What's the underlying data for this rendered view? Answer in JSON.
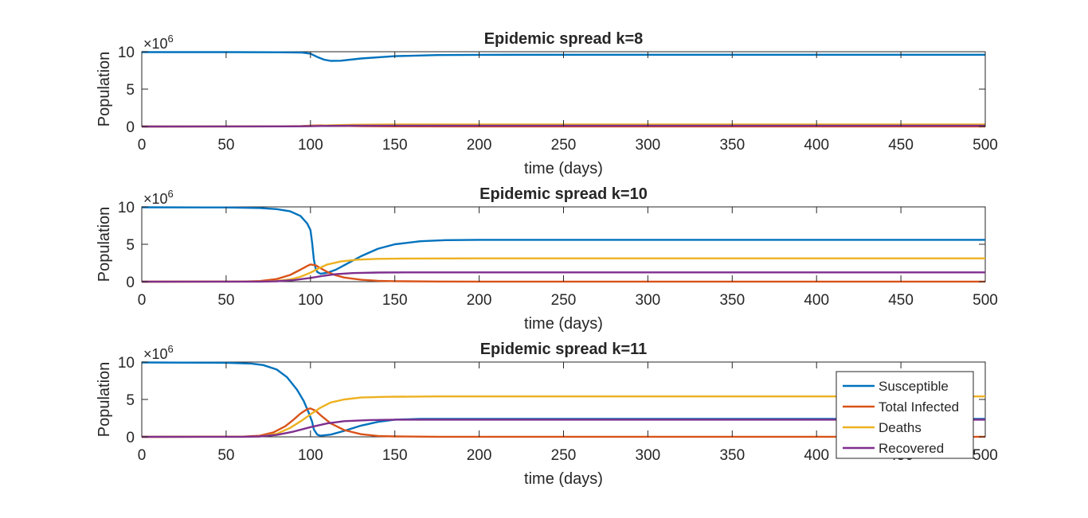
{
  "chart_data": [
    {
      "type": "line",
      "title": "Epidemic spread k=8",
      "xlabel": "time (days)",
      "ylabel": "Population",
      "exponent_label": "×10",
      "exponent_power": "6",
      "xlim": [
        0,
        500
      ],
      "ylim": [
        0,
        10
      ],
      "xticks": [
        "0",
        "50",
        "100",
        "150",
        "200",
        "250",
        "300",
        "350",
        "400",
        "450",
        "500"
      ],
      "yticks": [
        "0",
        "5",
        "10"
      ],
      "legend": null,
      "series": [
        {
          "name": "Susceptible",
          "color": "#0072BD",
          "points": [
            [
              0,
              9.95
            ],
            [
              50,
              9.95
            ],
            [
              80,
              9.93
            ],
            [
              95,
              9.88
            ],
            [
              100,
              9.75
            ],
            [
              104,
              9.3
            ],
            [
              108,
              8.95
            ],
            [
              112,
              8.78
            ],
            [
              118,
              8.8
            ],
            [
              130,
              9.1
            ],
            [
              150,
              9.4
            ],
            [
              175,
              9.55
            ],
            [
              200,
              9.58
            ],
            [
              300,
              9.6
            ],
            [
              500,
              9.6
            ]
          ]
        },
        {
          "name": "Total Infected",
          "color": "#D95319",
          "points": [
            [
              0,
              0
            ],
            [
              80,
              0.02
            ],
            [
              95,
              0.06
            ],
            [
              100,
              0.12
            ],
            [
              106,
              0.15
            ],
            [
              115,
              0.1
            ],
            [
              130,
              0.04
            ],
            [
              150,
              0.02
            ],
            [
              200,
              0.01
            ],
            [
              500,
              0.01
            ]
          ]
        },
        {
          "name": "Deaths",
          "color": "#EDB120",
          "points": [
            [
              0,
              0
            ],
            [
              90,
              0.02
            ],
            [
              100,
              0.06
            ],
            [
              110,
              0.15
            ],
            [
              125,
              0.23
            ],
            [
              150,
              0.27
            ],
            [
              200,
              0.28
            ],
            [
              500,
              0.28
            ]
          ]
        },
        {
          "name": "Recovered",
          "color": "#7E2F8E",
          "points": [
            [
              0,
              0
            ],
            [
              90,
              0.02
            ],
            [
              100,
              0.04
            ],
            [
              110,
              0.08
            ],
            [
              125,
              0.11
            ],
            [
              150,
              0.12
            ],
            [
              200,
              0.12
            ],
            [
              500,
              0.12
            ]
          ]
        }
      ]
    },
    {
      "type": "line",
      "title": "Epidemic spread k=10",
      "xlabel": "time (days)",
      "ylabel": "Population",
      "exponent_label": "×10",
      "exponent_power": "6",
      "xlim": [
        0,
        500
      ],
      "ylim": [
        0,
        10
      ],
      "xticks": [
        "0",
        "50",
        "100",
        "150",
        "200",
        "250",
        "300",
        "350",
        "400",
        "450",
        "500"
      ],
      "yticks": [
        "0",
        "5",
        "10"
      ],
      "legend": null,
      "series": [
        {
          "name": "Susceptible",
          "color": "#0072BD",
          "points": [
            [
              0,
              9.95
            ],
            [
              50,
              9.93
            ],
            [
              70,
              9.85
            ],
            [
              80,
              9.7
            ],
            [
              88,
              9.4
            ],
            [
              94,
              8.8
            ],
            [
              98,
              7.8
            ],
            [
              100,
              6.9
            ],
            [
              101,
              5.2
            ],
            [
              102,
              3.0
            ],
            [
              103,
              1.8
            ],
            [
              104,
              1.3
            ],
            [
              106,
              1.05
            ],
            [
              110,
              1.2
            ],
            [
              115,
              1.6
            ],
            [
              120,
              2.2
            ],
            [
              130,
              3.4
            ],
            [
              140,
              4.4
            ],
            [
              150,
              5.0
            ],
            [
              165,
              5.4
            ],
            [
              180,
              5.55
            ],
            [
              200,
              5.6
            ],
            [
              300,
              5.6
            ],
            [
              500,
              5.6
            ]
          ]
        },
        {
          "name": "Total Infected",
          "color": "#D95319",
          "points": [
            [
              0,
              0
            ],
            [
              60,
              0.02
            ],
            [
              70,
              0.08
            ],
            [
              80,
              0.35
            ],
            [
              88,
              0.9
            ],
            [
              94,
              1.6
            ],
            [
              98,
              2.1
            ],
            [
              100,
              2.3
            ],
            [
              103,
              2.2
            ],
            [
              106,
              1.8
            ],
            [
              110,
              1.3
            ],
            [
              115,
              0.85
            ],
            [
              120,
              0.55
            ],
            [
              130,
              0.25
            ],
            [
              140,
              0.12
            ],
            [
              150,
              0.06
            ],
            [
              175,
              0.02
            ],
            [
              200,
              0.01
            ],
            [
              500,
              0.01
            ]
          ]
        },
        {
          "name": "Deaths",
          "color": "#EDB120",
          "points": [
            [
              0,
              0
            ],
            [
              70,
              0.02
            ],
            [
              80,
              0.1
            ],
            [
              88,
              0.3
            ],
            [
              94,
              0.65
            ],
            [
              100,
              1.2
            ],
            [
              105,
              1.8
            ],
            [
              110,
              2.3
            ],
            [
              118,
              2.7
            ],
            [
              128,
              2.95
            ],
            [
              140,
              3.05
            ],
            [
              160,
              3.1
            ],
            [
              200,
              3.12
            ],
            [
              500,
              3.12
            ]
          ]
        },
        {
          "name": "Recovered",
          "color": "#7E2F8E",
          "points": [
            [
              0,
              0
            ],
            [
              70,
              0.01
            ],
            [
              80,
              0.05
            ],
            [
              90,
              0.2
            ],
            [
              100,
              0.5
            ],
            [
              108,
              0.8
            ],
            [
              115,
              1.0
            ],
            [
              125,
              1.15
            ],
            [
              140,
              1.22
            ],
            [
              160,
              1.25
            ],
            [
              200,
              1.25
            ],
            [
              500,
              1.25
            ]
          ]
        }
      ]
    },
    {
      "type": "line",
      "title": "Epidemic spread k=11",
      "xlabel": "time (days)",
      "ylabel": "Population",
      "exponent_label": "×10",
      "exponent_power": "6",
      "xlim": [
        0,
        500
      ],
      "ylim": [
        0,
        10
      ],
      "xticks": [
        "0",
        "50",
        "100",
        "150",
        "200",
        "250",
        "300",
        "350",
        "400",
        "450",
        "500"
      ],
      "yticks": [
        "0",
        "5",
        "10"
      ],
      "legend": "bottom-right",
      "series": [
        {
          "name": "Susceptible",
          "color": "#0072BD",
          "points": [
            [
              0,
              9.95
            ],
            [
              50,
              9.9
            ],
            [
              65,
              9.8
            ],
            [
              72,
              9.6
            ],
            [
              80,
              9.0
            ],
            [
              86,
              8.0
            ],
            [
              92,
              6.3
            ],
            [
              96,
              4.8
            ],
            [
              99,
              3.2
            ],
            [
              101,
              2.0
            ],
            [
              102,
              1.0
            ],
            [
              104,
              0.3
            ],
            [
              106,
              0.15
            ],
            [
              112,
              0.3
            ],
            [
              120,
              0.8
            ],
            [
              130,
              1.5
            ],
            [
              140,
              2.0
            ],
            [
              150,
              2.3
            ],
            [
              165,
              2.4
            ],
            [
              200,
              2.4
            ],
            [
              500,
              2.4
            ]
          ]
        },
        {
          "name": "Total Infected",
          "color": "#D95319",
          "points": [
            [
              0,
              0
            ],
            [
              60,
              0.03
            ],
            [
              70,
              0.15
            ],
            [
              78,
              0.6
            ],
            [
              85,
              1.4
            ],
            [
              90,
              2.3
            ],
            [
              94,
              3.1
            ],
            [
              98,
              3.7
            ],
            [
              100,
              3.8
            ],
            [
              103,
              3.5
            ],
            [
              107,
              2.7
            ],
            [
              112,
              1.8
            ],
            [
              120,
              0.9
            ],
            [
              130,
              0.35
            ],
            [
              140,
              0.12
            ],
            [
              150,
              0.05
            ],
            [
              175,
              0.01
            ],
            [
              500,
              0.01
            ]
          ]
        },
        {
          "name": "Deaths",
          "color": "#EDB120",
          "points": [
            [
              0,
              0
            ],
            [
              60,
              0.01
            ],
            [
              70,
              0.05
            ],
            [
              80,
              0.4
            ],
            [
              88,
              1.2
            ],
            [
              95,
              2.2
            ],
            [
              100,
              3.0
            ],
            [
              106,
              3.9
            ],
            [
              112,
              4.6
            ],
            [
              120,
              5.0
            ],
            [
              130,
              5.25
            ],
            [
              145,
              5.35
            ],
            [
              175,
              5.4
            ],
            [
              200,
              5.4
            ],
            [
              500,
              5.4
            ]
          ]
        },
        {
          "name": "Recovered",
          "color": "#7E2F8E",
          "points": [
            [
              0,
              0
            ],
            [
              60,
              0.01
            ],
            [
              70,
              0.05
            ],
            [
              80,
              0.25
            ],
            [
              90,
              0.7
            ],
            [
              100,
              1.3
            ],
            [
              110,
              1.8
            ],
            [
              120,
              2.1
            ],
            [
              135,
              2.25
            ],
            [
              150,
              2.3
            ],
            [
              200,
              2.3
            ],
            [
              500,
              2.3
            ]
          ]
        }
      ]
    }
  ]
}
